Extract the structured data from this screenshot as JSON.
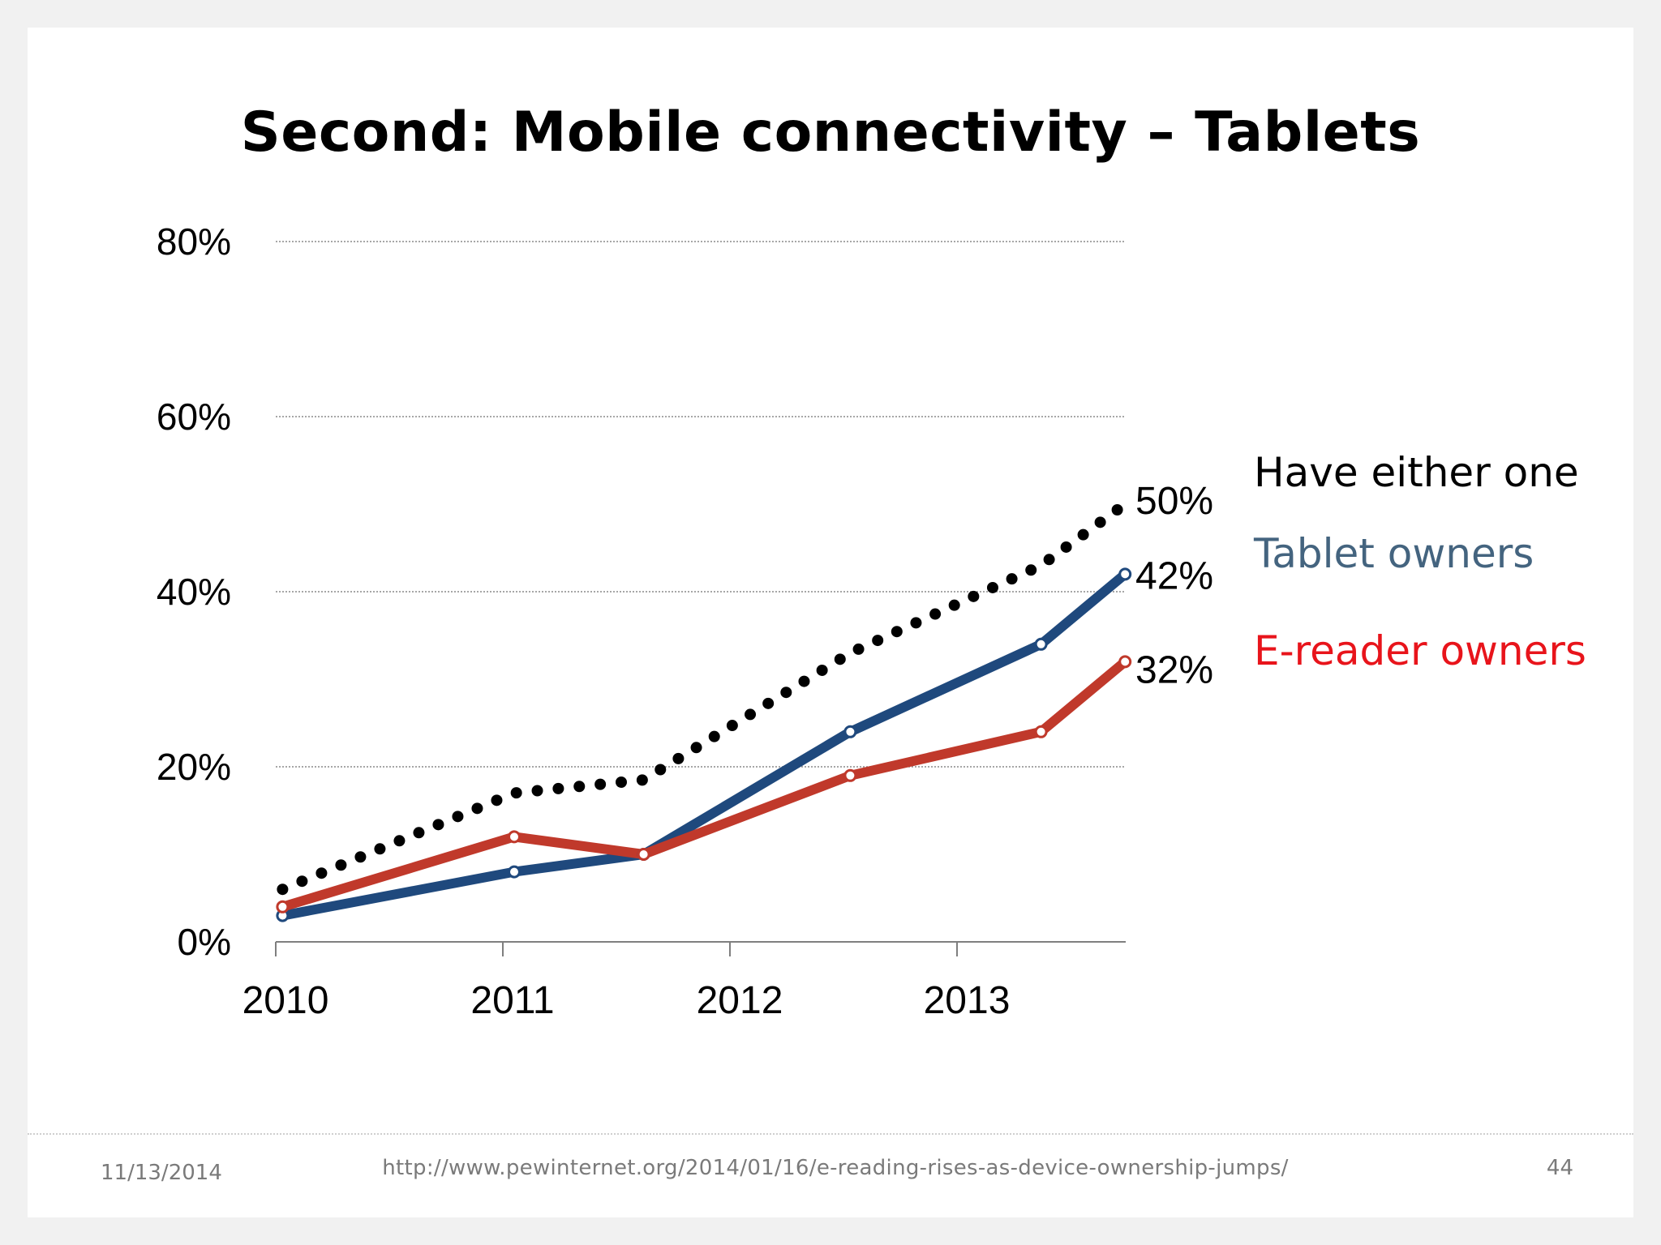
{
  "slide": {
    "title": "Second: Mobile connectivity – Tablets",
    "footer": {
      "date": "11/13/2014",
      "url": "http://www.pewinternet.org/2014/01/16/e-reading-rises-as-device-ownership-jumps/",
      "page": "44"
    }
  },
  "chart_data": {
    "type": "line",
    "title": "Second: Mobile connectivity – Tablets",
    "xlabel": "",
    "ylabel": "",
    "xlim": [
      2010,
      2013.74
    ],
    "ylim": [
      0,
      80
    ],
    "x_ticks": [
      2010,
      2011,
      2012,
      2013
    ],
    "x_tick_labels": [
      "2010",
      "2011",
      "2012",
      "2013"
    ],
    "y_ticks": [
      0,
      20,
      40,
      60,
      80
    ],
    "y_tick_labels": [
      "0%",
      "20%",
      "40%",
      "60%",
      "80%"
    ],
    "grid": "horizontal-dotted",
    "legend": "right",
    "series": [
      {
        "name": "Have either one",
        "style": "dotted",
        "color": "#000000",
        "end_label": "50%",
        "points": [
          [
            2010.03,
            6
          ],
          [
            2011.05,
            17
          ],
          [
            2011.62,
            18.5
          ],
          [
            2012.53,
            33
          ],
          [
            2013.37,
            43
          ],
          [
            2013.74,
            50
          ]
        ]
      },
      {
        "name": "Tablet owners",
        "style": "solid",
        "color": "#1f497d",
        "label_color": "#44647f",
        "end_label": "42%",
        "points": [
          [
            2010.03,
            3
          ],
          [
            2011.05,
            8
          ],
          [
            2011.62,
            10
          ],
          [
            2012.53,
            24
          ],
          [
            2013.37,
            34
          ],
          [
            2013.74,
            42
          ]
        ]
      },
      {
        "name": "E-reader owners",
        "style": "solid",
        "color": "#c0392b",
        "label_color": "#e8141b",
        "end_label": "32%",
        "points": [
          [
            2010.03,
            4
          ],
          [
            2011.05,
            12
          ],
          [
            2011.62,
            10
          ],
          [
            2012.53,
            19
          ],
          [
            2013.37,
            24
          ],
          [
            2013.74,
            32
          ]
        ]
      }
    ]
  }
}
